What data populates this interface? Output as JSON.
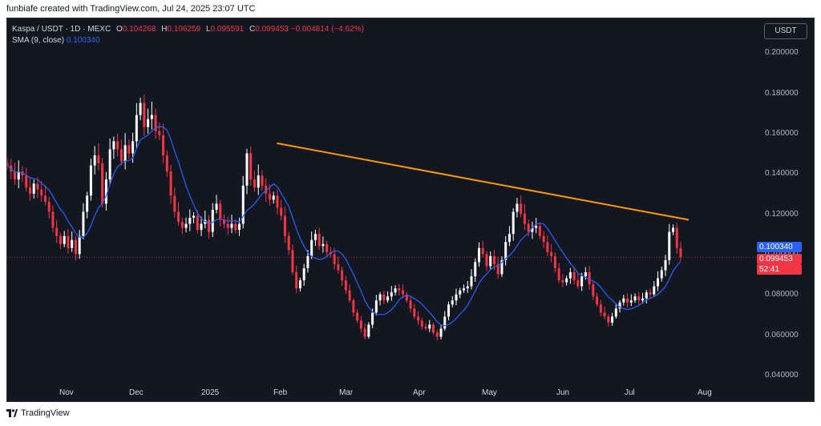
{
  "header_text": "funbiafe created with TradingView.com, Jul 24, 2025 23:07 UTC",
  "legend": {
    "symbol": "Kaspa / USDT · 1D · MEXC",
    "open_label": "O",
    "open": "0.104268",
    "high_label": "H",
    "high": "0.106259",
    "low_label": "L",
    "low": "0.095591",
    "close_label": "C",
    "close": "0.099453",
    "change": "−0.004814 (−4.62%)",
    "sma_label": "SMA (9, close)",
    "sma_value": "0.100340"
  },
  "currency_button": "USDT",
  "price_tags": {
    "sma": "0.100340",
    "last": "0.099453",
    "countdown": "52:41"
  },
  "footer_brand": "TradingView",
  "colors": {
    "background": "#131722",
    "up": "#ffffff",
    "down": "#f23645",
    "sma": "#2962ff",
    "trendline": "#ff9800",
    "axis_text": "#b2b5be"
  },
  "chart_data": {
    "type": "candlestick",
    "ylim": [
      0.03,
      0.21
    ],
    "y_ticks": [
      "0.200000",
      "0.180000",
      "0.160000",
      "0.140000",
      "0.120000",
      "0.100000",
      "0.080000",
      "0.060000",
      "0.040000"
    ],
    "x_ticks": [
      "Nov",
      "Dec",
      "2025",
      "Feb",
      "Mar",
      "Apr",
      "May",
      "Jun",
      "Jul",
      "Aug"
    ],
    "close_series": [
      0.145,
      0.142,
      0.138,
      0.142,
      0.14,
      0.134,
      0.131,
      0.136,
      0.133,
      0.13,
      0.127,
      0.122,
      0.114,
      0.11,
      0.106,
      0.11,
      0.104,
      0.108,
      0.101,
      0.11,
      0.122,
      0.13,
      0.145,
      0.15,
      0.146,
      0.126,
      0.138,
      0.153,
      0.157,
      0.153,
      0.147,
      0.155,
      0.151,
      0.157,
      0.17,
      0.176,
      0.164,
      0.168,
      0.17,
      0.162,
      0.16,
      0.15,
      0.142,
      0.13,
      0.122,
      0.117,
      0.114,
      0.116,
      0.119,
      0.12,
      0.113,
      0.116,
      0.118,
      0.112,
      0.123,
      0.126,
      0.118,
      0.116,
      0.114,
      0.116,
      0.113,
      0.116,
      0.135,
      0.151,
      0.138,
      0.134,
      0.14,
      0.135,
      0.131,
      0.128,
      0.13,
      0.124,
      0.12,
      0.11,
      0.103,
      0.092,
      0.084,
      0.088,
      0.094,
      0.1,
      0.108,
      0.111,
      0.105,
      0.106,
      0.102,
      0.101,
      0.096,
      0.093,
      0.088,
      0.083,
      0.078,
      0.072,
      0.068,
      0.064,
      0.06,
      0.066,
      0.072,
      0.078,
      0.081,
      0.078,
      0.08,
      0.082,
      0.084,
      0.083,
      0.081,
      0.078,
      0.074,
      0.07,
      0.068,
      0.065,
      0.064,
      0.066,
      0.062,
      0.06,
      0.064,
      0.07,
      0.076,
      0.078,
      0.081,
      0.083,
      0.084,
      0.085,
      0.09,
      0.097,
      0.104,
      0.101,
      0.095,
      0.1,
      0.096,
      0.091,
      0.098,
      0.107,
      0.111,
      0.122,
      0.126,
      0.121,
      0.116,
      0.112,
      0.114,
      0.115,
      0.11,
      0.107,
      0.102,
      0.1,
      0.094,
      0.088,
      0.087,
      0.089,
      0.092,
      0.088,
      0.085,
      0.09,
      0.092,
      0.086,
      0.08,
      0.076,
      0.072,
      0.07,
      0.067,
      0.07,
      0.074,
      0.077,
      0.079,
      0.077,
      0.078,
      0.08,
      0.078,
      0.079,
      0.082,
      0.081,
      0.085,
      0.089,
      0.093,
      0.098,
      0.112,
      0.114,
      0.104,
      0.099453
    ],
    "sma_last": 0.10034,
    "last_close": 0.099453,
    "trendline": [
      {
        "x": "Jan 16",
        "y": 0.156
      },
      {
        "x": "Jul 24",
        "y": 0.118
      }
    ]
  }
}
